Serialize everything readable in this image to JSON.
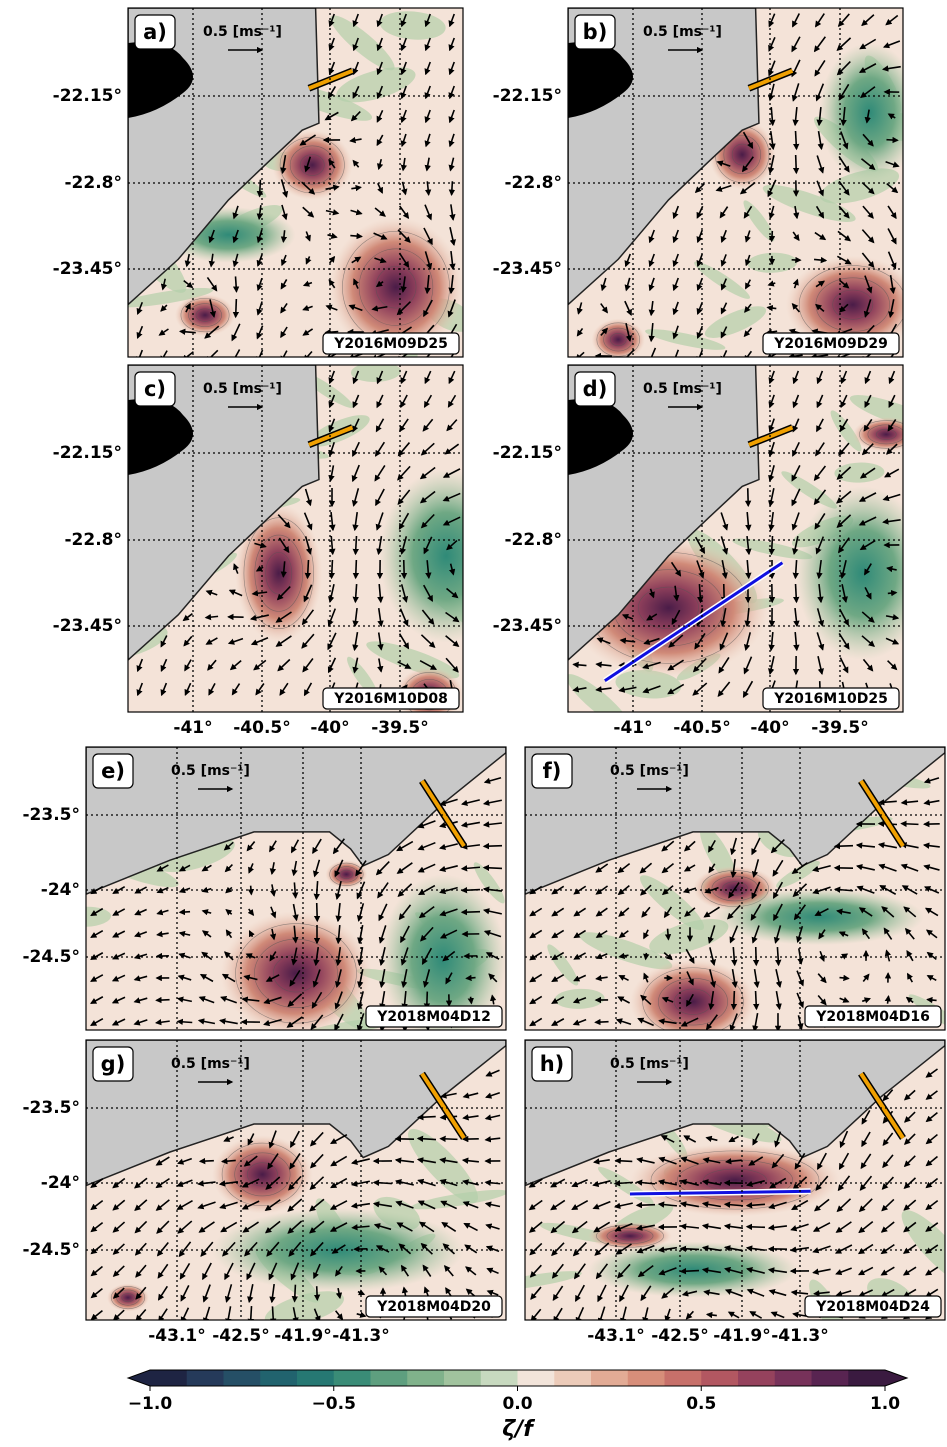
{
  "panels": [
    {
      "label": "a)",
      "date": "Y2016M09D25",
      "scale_label": "0.5 [ms⁻¹]"
    },
    {
      "label": "b)",
      "date": "Y2016M09D29",
      "scale_label": "0.5 [ms⁻¹]"
    },
    {
      "label": "c)",
      "date": "Y2016M10D08",
      "scale_label": "0.5 [ms⁻¹]"
    },
    {
      "label": "d)",
      "date": "Y2016M10D25",
      "scale_label": "0.5 [ms⁻¹]"
    },
    {
      "label": "e)",
      "date": "Y2018M04D12",
      "scale_label": "0.5 [ms⁻¹]"
    },
    {
      "label": "f)",
      "date": "Y2018M04D16",
      "scale_label": "0.5 [ms⁻¹]"
    },
    {
      "label": "g)",
      "date": "Y2018M04D20",
      "scale_label": "0.5 [ms⁻¹]"
    },
    {
      "label": "h)",
      "date": "Y2018M04D24",
      "scale_label": "0.5 [ms⁻¹]"
    }
  ],
  "top_axes": {
    "yticks": [
      "-22.15°",
      "-22.8°",
      "-23.45°"
    ],
    "xticks": [
      "-41°",
      "-40.5°",
      "-40°",
      "-39.5°"
    ]
  },
  "bottom_axes": {
    "yticks": [
      "-23.5°",
      "-24°",
      "-24.5°"
    ],
    "xticks": [
      "-43.1°",
      "-42.5°",
      "-41.9°",
      "-41.3°"
    ]
  },
  "colorbar": {
    "label": "ζ/f",
    "lim": [
      -1,
      1
    ],
    "ticks": [
      {
        "value": -1,
        "label": "−1.0"
      },
      {
        "value": -0.5,
        "label": "−0.5"
      },
      {
        "value": 0,
        "label": "0.0"
      },
      {
        "value": 0.5,
        "label": "0.5"
      },
      {
        "value": 1,
        "label": "1.0"
      }
    ],
    "colors": [
      "#1e2443",
      "#253a5a",
      "#254f66",
      "#21636e",
      "#267873",
      "#3a8c77",
      "#5e9f7f",
      "#80b28b",
      "#a1c39e",
      "#c7d9bf",
      "#f2e4da",
      "#eccbb9",
      "#e2ab95",
      "#d78e7a",
      "#c7706a",
      "#b25761",
      "#95425d",
      "#77325a",
      "#582451",
      "#3a1a40"
    ]
  }
}
